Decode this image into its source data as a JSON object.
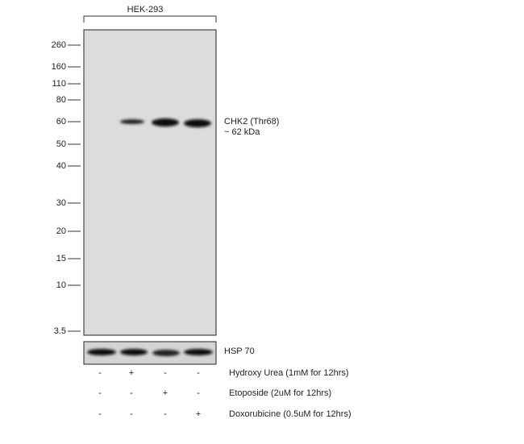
{
  "header": {
    "cell_line": "HEK-293"
  },
  "markers": [
    "260",
    "160",
    "110",
    "80",
    "60",
    "50",
    "40",
    "30",
    "20",
    "15",
    "10",
    "3.5"
  ],
  "target": {
    "name": "CHK2 (Thr68)",
    "size": "~ 62 kDa"
  },
  "loading_control": "HSP 70",
  "treatments": [
    {
      "signs": [
        "-",
        "+",
        "-",
        "-"
      ],
      "label": "Hydroxy Urea (1mM for 12hrs)"
    },
    {
      "signs": [
        "-",
        "-",
        "+",
        "-"
      ],
      "label": "Etoposide (2uM for 12hrs)"
    },
    {
      "signs": [
        "-",
        "-",
        "-",
        "+"
      ],
      "label": "Doxorubicine (0.5uM for 12hrs)"
    }
  ]
}
